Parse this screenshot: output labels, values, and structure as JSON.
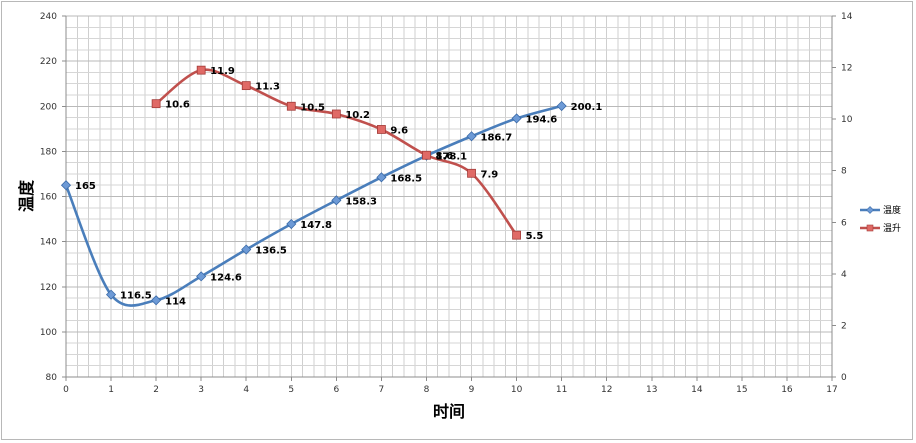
{
  "chart_data": {
    "type": "line",
    "xlabel": "时间",
    "ylabel": "温度",
    "title": "",
    "xlim": [
      0,
      17
    ],
    "ylim": [
      80,
      240
    ],
    "y2lim": [
      0,
      14
    ],
    "x_ticks": [
      "0",
      "1",
      "2",
      "3",
      "4",
      "5",
      "6",
      "7",
      "8",
      "9",
      "10",
      "11",
      "12",
      "13",
      "14",
      "15",
      "16",
      "17"
    ],
    "y_ticks": [
      "80",
      "100",
      "120",
      "140",
      "160",
      "180",
      "200",
      "220",
      "240"
    ],
    "y2_ticks": [
      "0",
      "2",
      "4",
      "6",
      "8",
      "10",
      "12",
      "14"
    ],
    "grid": true,
    "legend_position": "right",
    "series": [
      {
        "name": "温度",
        "axis": "left",
        "color": "#4a7ebb",
        "marker": "diamond",
        "x": [
          0,
          1,
          2,
          3,
          4,
          5,
          6,
          7,
          8,
          9,
          10,
          11
        ],
        "values": [
          165,
          116.5,
          114,
          124.6,
          136.5,
          147.8,
          158.3,
          168.5,
          178.1,
          186.7,
          194.6,
          200.1
        ],
        "labels": [
          "165",
          "116.5",
          "114",
          "124.6",
          "136.5",
          "147.8",
          "158.3",
          "168.5",
          "178.1",
          "186.7",
          "194.6",
          "200.1"
        ]
      },
      {
        "name": "温升",
        "axis": "right",
        "color": "#c0504d",
        "marker": "square",
        "x": [
          2,
          3,
          4,
          5,
          6,
          7,
          8,
          9,
          10
        ],
        "values": [
          10.6,
          11.9,
          11.3,
          10.5,
          10.2,
          9.6,
          8.6,
          7.9,
          5.5
        ],
        "labels": [
          "10.6",
          "11.9",
          "11.3",
          "10.5",
          "10.2",
          "9.6",
          "8.6",
          "7.9",
          "5.5"
        ]
      }
    ]
  }
}
